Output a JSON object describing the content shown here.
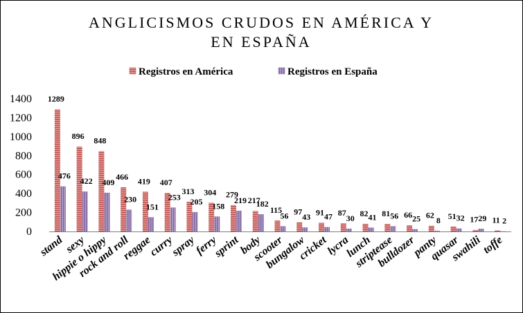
{
  "chart_data": {
    "type": "bar",
    "title": "ANGLICISMOS CRUDOS EN AMÉRICA Y EN ESPAÑA",
    "title_lines": [
      "ANGLICISMOS CRUDOS EN AMÉRICA Y",
      "EN ESPAÑA"
    ],
    "xlabel": "",
    "ylabel": "",
    "ylim": [
      0,
      1400
    ],
    "yticks": [
      "0",
      "200",
      "400",
      "600",
      "800",
      "1000",
      "1200",
      "1400"
    ],
    "grid": false,
    "legend_position": "top",
    "categories": [
      "stand",
      "sexy",
      "hippie o hippy",
      "rock and roll",
      "reggae",
      "curry",
      "spray",
      "ferry",
      "sprint",
      "body",
      "scooter",
      "bungalow",
      "cricket",
      "lycra",
      "lunch",
      "striptease",
      "bulldozer",
      "panty",
      "quasar",
      "swahili",
      "toffe"
    ],
    "series": [
      {
        "name": "Registros en América",
        "color": "#c0504d",
        "values": [
          1289,
          896,
          848,
          466,
          419,
          407,
          313,
          304,
          279,
          217,
          115,
          97,
          91,
          87,
          82,
          81,
          66,
          62,
          51,
          17,
          11
        ]
      },
      {
        "name": "Registros en España",
        "color": "#8064a2",
        "values": [
          476,
          422,
          409,
          230,
          151,
          253,
          205,
          158,
          219,
          182,
          56,
          43,
          47,
          30,
          41,
          56,
          25,
          8,
          32,
          29,
          2
        ]
      }
    ]
  }
}
